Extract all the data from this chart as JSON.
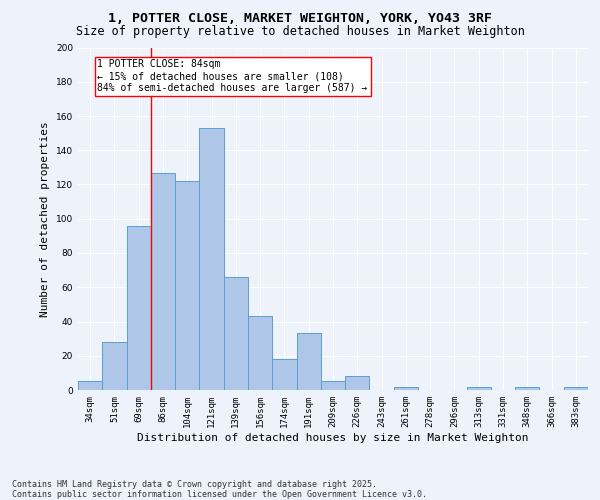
{
  "title": "1, POTTER CLOSE, MARKET WEIGHTON, YORK, YO43 3RF",
  "subtitle": "Size of property relative to detached houses in Market Weighton",
  "xlabel": "Distribution of detached houses by size in Market Weighton",
  "ylabel": "Number of detached properties",
  "bar_labels": [
    "34sqm",
    "51sqm",
    "69sqm",
    "86sqm",
    "104sqm",
    "121sqm",
    "139sqm",
    "156sqm",
    "174sqm",
    "191sqm",
    "209sqm",
    "226sqm",
    "243sqm",
    "261sqm",
    "278sqm",
    "296sqm",
    "313sqm",
    "331sqm",
    "348sqm",
    "366sqm",
    "383sqm"
  ],
  "bar_values": [
    5,
    28,
    96,
    127,
    122,
    153,
    66,
    43,
    18,
    33,
    5,
    8,
    0,
    2,
    0,
    0,
    2,
    0,
    2,
    0,
    2
  ],
  "bar_color": "#aec6e8",
  "bar_edge_color": "#5a9fd4",
  "vline_x_idx": 2,
  "vline_color": "red",
  "annotation_text": "1 POTTER CLOSE: 84sqm\n← 15% of detached houses are smaller (108)\n84% of semi-detached houses are larger (587) →",
  "annotation_box_color": "white",
  "annotation_box_edge_color": "red",
  "ylim": [
    0,
    200
  ],
  "yticks": [
    0,
    20,
    40,
    60,
    80,
    100,
    120,
    140,
    160,
    180,
    200
  ],
  "footnote": "Contains HM Land Registry data © Crown copyright and database right 2025.\nContains public sector information licensed under the Open Government Licence v3.0.",
  "background_color": "#eef2fb",
  "grid_color": "white",
  "title_fontsize": 9.5,
  "subtitle_fontsize": 8.5,
  "axis_label_fontsize": 8,
  "tick_fontsize": 6.5,
  "annotation_fontsize": 7,
  "footnote_fontsize": 6
}
